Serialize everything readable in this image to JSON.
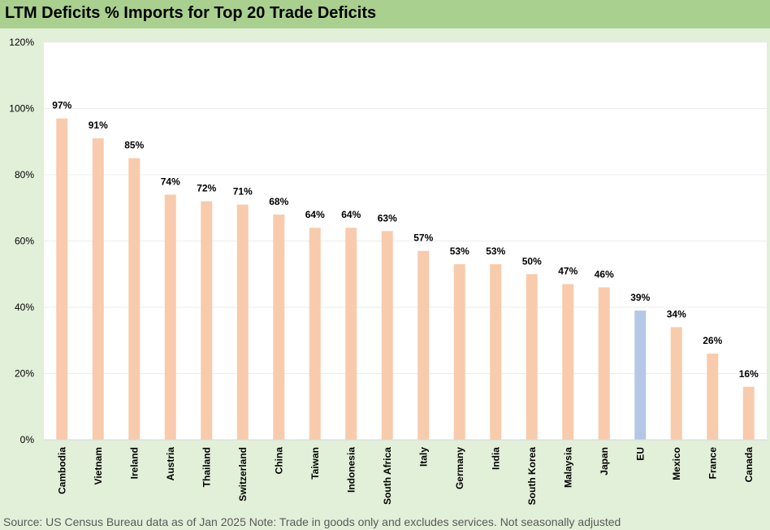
{
  "title": "LTM Deficits % Imports for Top 20 Trade Deficits",
  "source_note": "Source: US Census Bureau data as of Jan 2025 Note: Trade in goods only and excludes services. Not seasonally adjusted",
  "colors": {
    "bar": "#f8cbad",
    "highlight": "#b4c7e7",
    "title_bar": "#a9d08e",
    "background": "#e2efd9",
    "plot": "#ffffff"
  },
  "chart_data": {
    "type": "bar",
    "title": "LTM Deficits % Imports for Top 20 Trade Deficits",
    "xlabel": "",
    "ylabel": "",
    "ylim": [
      0,
      120
    ],
    "yticks": [
      0,
      20,
      40,
      60,
      80,
      100,
      120
    ],
    "ytick_labels": [
      "0%",
      "20%",
      "40%",
      "60%",
      "80%",
      "100%",
      "120%"
    ],
    "grid": true,
    "categories": [
      "Cambodia",
      "Vietnam",
      "Ireland",
      "Austria",
      "Thailand",
      "Switzerland",
      "China",
      "Taiwan",
      "Indonesia",
      "South Africa",
      "Italy",
      "Germany",
      "India",
      "South Korea",
      "Malaysia",
      "Japan",
      "EU",
      "Mexico",
      "France",
      "Canada"
    ],
    "values": [
      97,
      91,
      85,
      74,
      72,
      71,
      68,
      64,
      64,
      63,
      57,
      53,
      53,
      50,
      47,
      46,
      39,
      34,
      26,
      16
    ],
    "data_labels": [
      "97%",
      "91%",
      "85%",
      "74%",
      "72%",
      "71%",
      "68%",
      "64%",
      "64%",
      "63%",
      "57%",
      "53%",
      "53%",
      "50%",
      "47%",
      "46%",
      "39%",
      "34%",
      "26%",
      "16%"
    ],
    "highlight_category": "EU"
  }
}
